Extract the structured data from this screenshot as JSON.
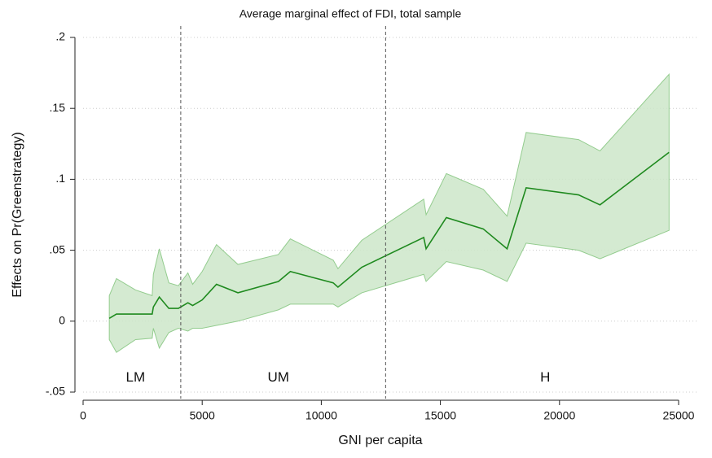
{
  "chart_data": {
    "type": "line_band",
    "title": "Average marginal effect of FDI, total sample",
    "x_label": "GNI per capita",
    "y_label": "Effects on Pr(Greenstrategy)",
    "x": [
      1100,
      1400,
      2200,
      2900,
      2950,
      3200,
      3600,
      4000,
      4400,
      4600,
      5000,
      5600,
      6500,
      8200,
      8700,
      10500,
      10700,
      11700,
      14300,
      14400,
      15250,
      16800,
      17800,
      18600,
      20800,
      21700,
      24600
    ],
    "values": [
      0.002,
      0.005,
      0.005,
      0.005,
      0.01,
      0.017,
      0.009,
      0.009,
      0.013,
      0.011,
      0.015,
      0.026,
      0.02,
      0.028,
      0.035,
      0.027,
      0.024,
      0.038,
      0.059,
      0.051,
      0.073,
      0.065,
      0.051,
      0.094,
      0.089,
      0.082,
      0.119
    ],
    "upper": [
      0.018,
      0.03,
      0.022,
      0.018,
      0.033,
      0.051,
      0.027,
      0.025,
      0.034,
      0.026,
      0.035,
      0.054,
      0.04,
      0.047,
      0.058,
      0.043,
      0.037,
      0.057,
      0.086,
      0.075,
      0.104,
      0.093,
      0.074,
      0.133,
      0.128,
      0.12,
      0.174
    ],
    "lower": [
      -0.013,
      -0.022,
      -0.013,
      -0.012,
      -0.005,
      -0.019,
      -0.008,
      -0.005,
      -0.007,
      -0.005,
      -0.005,
      -0.003,
      0.0,
      0.008,
      0.012,
      0.012,
      0.01,
      0.02,
      0.033,
      0.028,
      0.042,
      0.036,
      0.028,
      0.055,
      0.05,
      0.044,
      0.064
    ],
    "color": "#1f8a1f",
    "band_color": "#cde6c9",
    "band_edge": "#93cc8e",
    "xlim": [
      0,
      25000
    ],
    "xticks": [
      0,
      5000,
      10000,
      15000,
      20000,
      25000
    ],
    "ylim": [
      -0.05,
      0.2
    ],
    "yticks": [
      {
        "value": -0.05,
        "label": "-.05"
      },
      0,
      {
        "value": 0.05,
        "label": ".05"
      },
      {
        "value": 0.1,
        "label": ".1"
      },
      {
        "value": 0.15,
        "label": ".15"
      },
      {
        "value": 0.2,
        "label": ".2"
      }
    ],
    "grid": true,
    "vlines": [
      4100,
      12700
    ],
    "annotations": [
      {
        "text": "LM",
        "x": 2200,
        "y": -0.04
      },
      {
        "text": "UM",
        "x": 8200,
        "y": -0.04
      },
      {
        "text": "H",
        "x": 19400,
        "y": -0.04
      }
    ]
  }
}
